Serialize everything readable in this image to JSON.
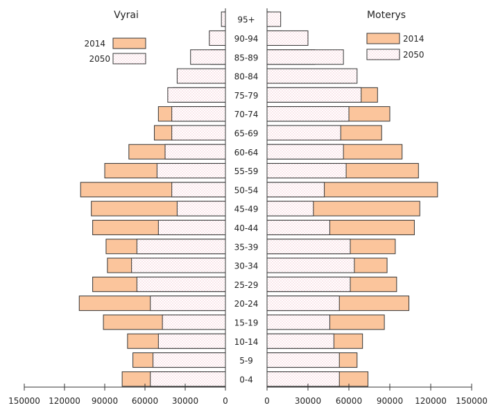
{
  "chart_data": {
    "type": "bar",
    "subtype": "population-pyramid",
    "left_title": "Vyrai",
    "right_title": "Moterys",
    "categories": [
      "0-4",
      "5-9",
      "10-14",
      "15-19",
      "20-24",
      "25-29",
      "30-34",
      "35-39",
      "40-44",
      "45-49",
      "50-54",
      "55-59",
      "60-64",
      "65-69",
      "70-74",
      "75-79",
      "80-84",
      "85-89",
      "90-94",
      "95+"
    ],
    "legend": [
      {
        "label": "2014",
        "style": "solid"
      },
      {
        "label": "2050",
        "style": "dotted"
      }
    ],
    "series": [
      {
        "name": "Vyrai 2014",
        "side": "left",
        "values": [
          77000,
          69000,
          73000,
          91000,
          109000,
          99000,
          88000,
          89000,
          99000,
          100000,
          108000,
          90000,
          72000,
          53000,
          50000,
          39000,
          25000,
          11000,
          3000,
          1000
        ]
      },
      {
        "name": "Vyrai 2050",
        "side": "left",
        "values": [
          56000,
          54000,
          50000,
          47000,
          56000,
          66000,
          70000,
          66000,
          50000,
          36000,
          40000,
          51000,
          45000,
          40000,
          40000,
          43000,
          36000,
          26000,
          12000,
          3000
        ]
      },
      {
        "name": "Moterys 2014",
        "side": "right",
        "values": [
          74000,
          66000,
          70000,
          86000,
          104000,
          95000,
          88000,
          94000,
          108000,
          112000,
          125000,
          111000,
          99000,
          84000,
          90000,
          81000,
          61000,
          35000,
          11000,
          2000
        ]
      },
      {
        "name": "Moterys 2050",
        "side": "right",
        "values": [
          53000,
          53000,
          49000,
          46000,
          53000,
          61000,
          64000,
          61000,
          46000,
          34000,
          42000,
          58000,
          56000,
          54000,
          60000,
          69000,
          66000,
          56000,
          30000,
          10000
        ]
      }
    ],
    "left_axis": {
      "ticks": [
        "150000",
        "120000",
        "90000",
        "60000",
        "30000",
        "0"
      ],
      "max": 150000
    },
    "right_axis": {
      "ticks": [
        "0",
        "30000",
        "60000",
        "90000",
        "120000",
        "150000"
      ],
      "max": 150000
    },
    "colors": {
      "solid_fill": "#fbc59c",
      "dotted_fill": "#ffffff",
      "dot_color": "#f0a8b8",
      "stroke": "#333333"
    },
    "grid": false,
    "legend_placement": "top (both halves)"
  }
}
